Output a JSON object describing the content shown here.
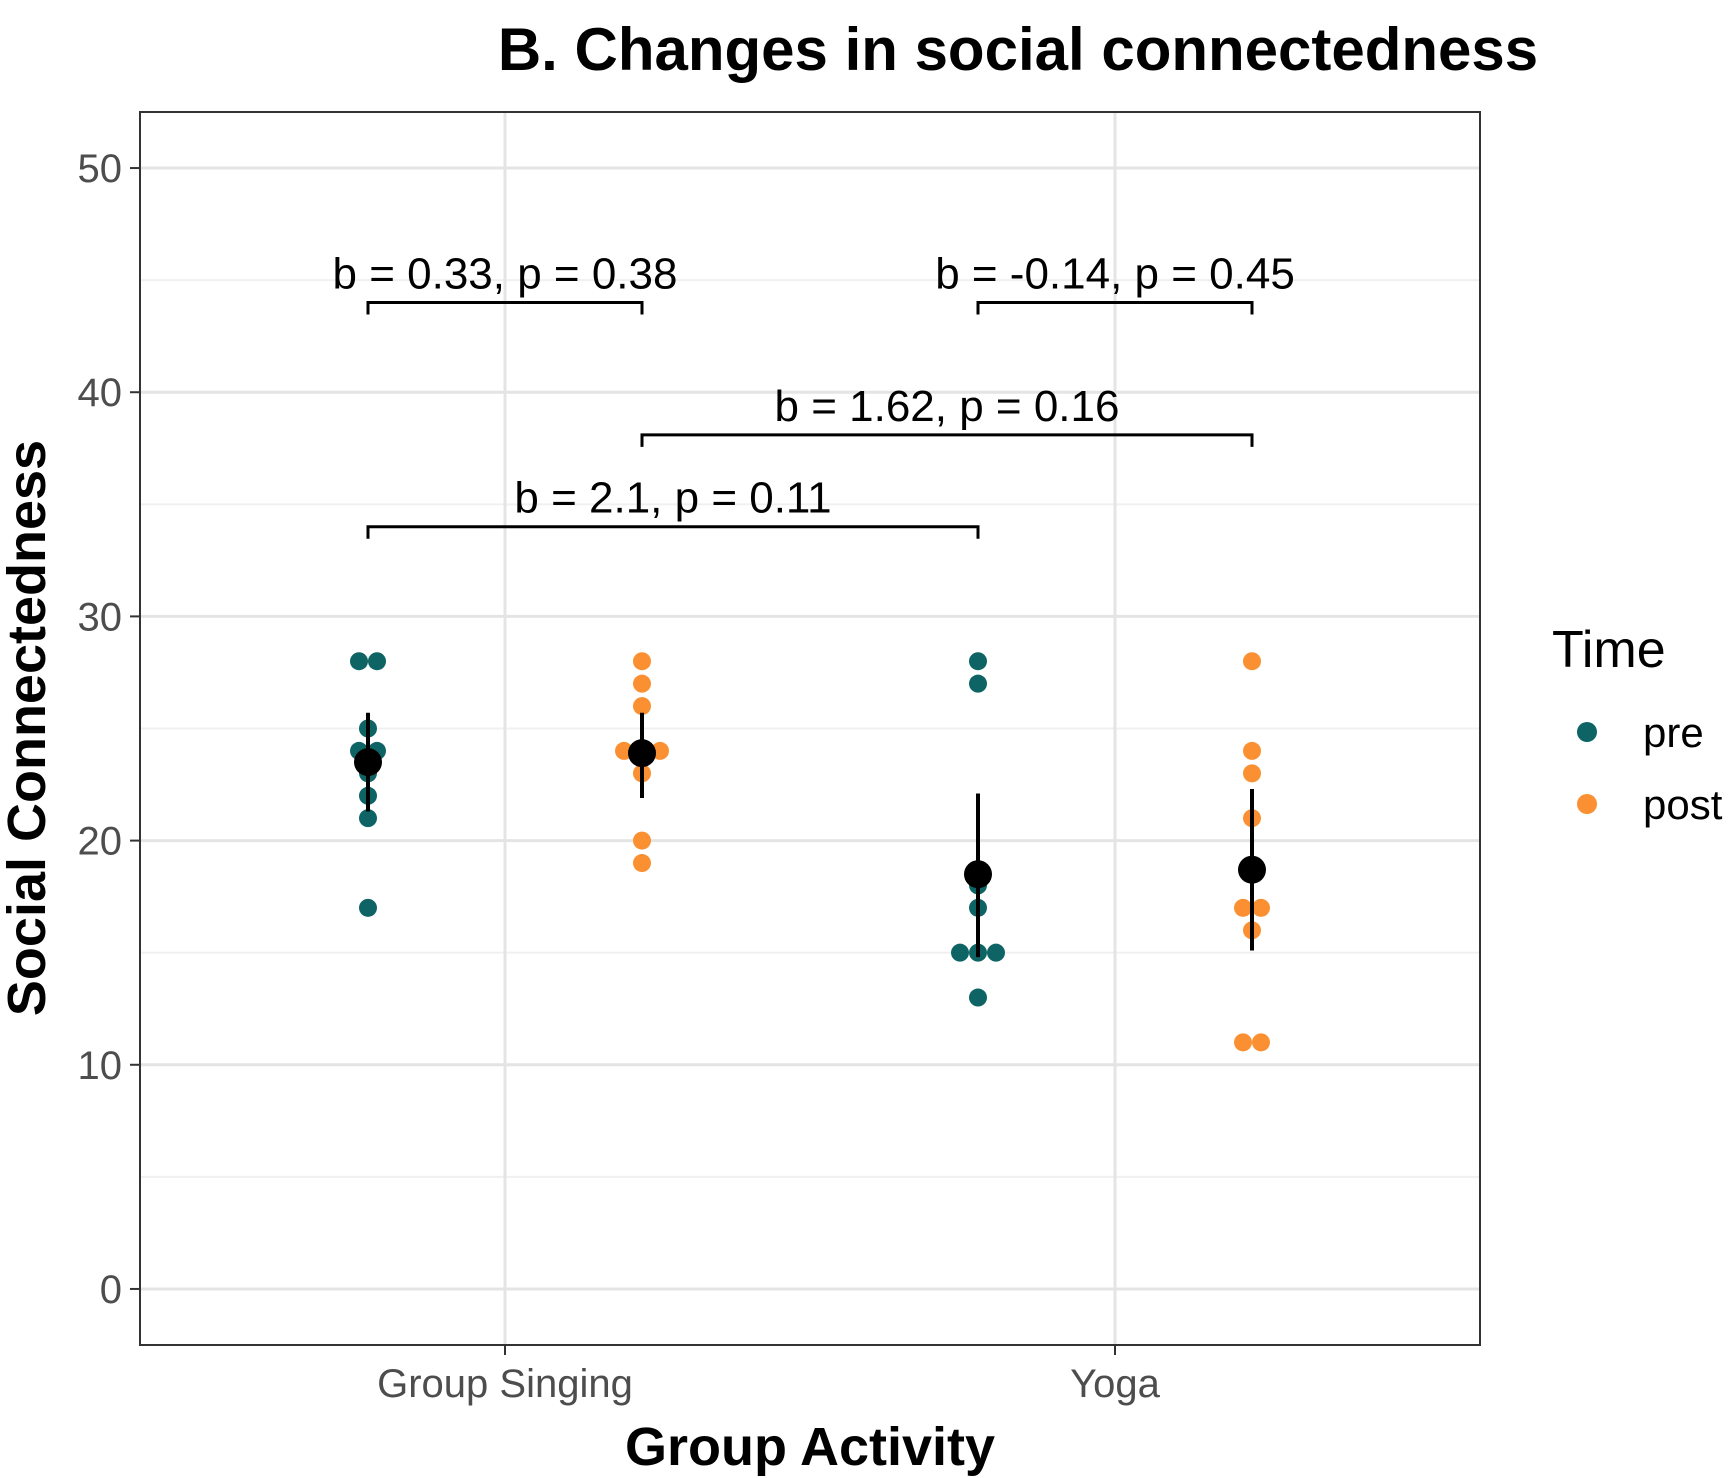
{
  "chart_data": {
    "type": "scatter",
    "title": "B. Changes in social connectedness",
    "xlabel": "Group Activity",
    "ylabel": "Social Connectedness",
    "ylim": [
      -2.5,
      52.5
    ],
    "y_ticks": [
      0,
      10,
      20,
      30,
      40,
      50
    ],
    "categories": [
      "Group Singing",
      "Yoga"
    ],
    "legend": {
      "title": "Time",
      "position": "right",
      "entries": [
        {
          "name": "pre",
          "color": "#0e6464"
        },
        {
          "name": "post",
          "color": "#fa9032"
        }
      ]
    },
    "series": [
      {
        "name": "pre",
        "category": "Group Singing",
        "color": "#0e6464",
        "points": [
          28,
          28,
          25,
          24,
          24,
          23,
          22,
          21,
          17
        ],
        "mean": 23.5,
        "ci": [
          21.3,
          25.7
        ]
      },
      {
        "name": "post",
        "category": "Group Singing",
        "color": "#fa9032",
        "points": [
          28,
          27,
          26,
          24,
          24,
          24,
          23,
          20,
          19
        ],
        "mean": 23.9,
        "ci": [
          21.9,
          25.7
        ]
      },
      {
        "name": "pre",
        "category": "Yoga",
        "color": "#0e6464",
        "points": [
          28,
          27,
          18,
          17,
          15,
          15,
          15,
          13
        ],
        "mean": 18.5,
        "ci": [
          14.8,
          22.1
        ]
      },
      {
        "name": "post",
        "category": "Yoga",
        "color": "#fa9032",
        "points": [
          28,
          24,
          23,
          21,
          17,
          17,
          16,
          11,
          11
        ],
        "mean": 18.7,
        "ci": [
          15.1,
          22.3
        ]
      }
    ],
    "annotations": [
      {
        "text": "b = 0.33, p = 0.38",
        "from_group": 0,
        "to_group": 1,
        "y": 44
      },
      {
        "text": "b = -0.14, p = 0.45",
        "from_group": 2,
        "to_group": 3,
        "y": 44
      },
      {
        "text": "b = 1.62, p = 0.16",
        "from_group": 1,
        "to_group": 3,
        "y": 38.1
      },
      {
        "text": "b = 2.1, p = 0.11",
        "from_group": 0,
        "to_group": 2,
        "y": 34
      }
    ]
  }
}
